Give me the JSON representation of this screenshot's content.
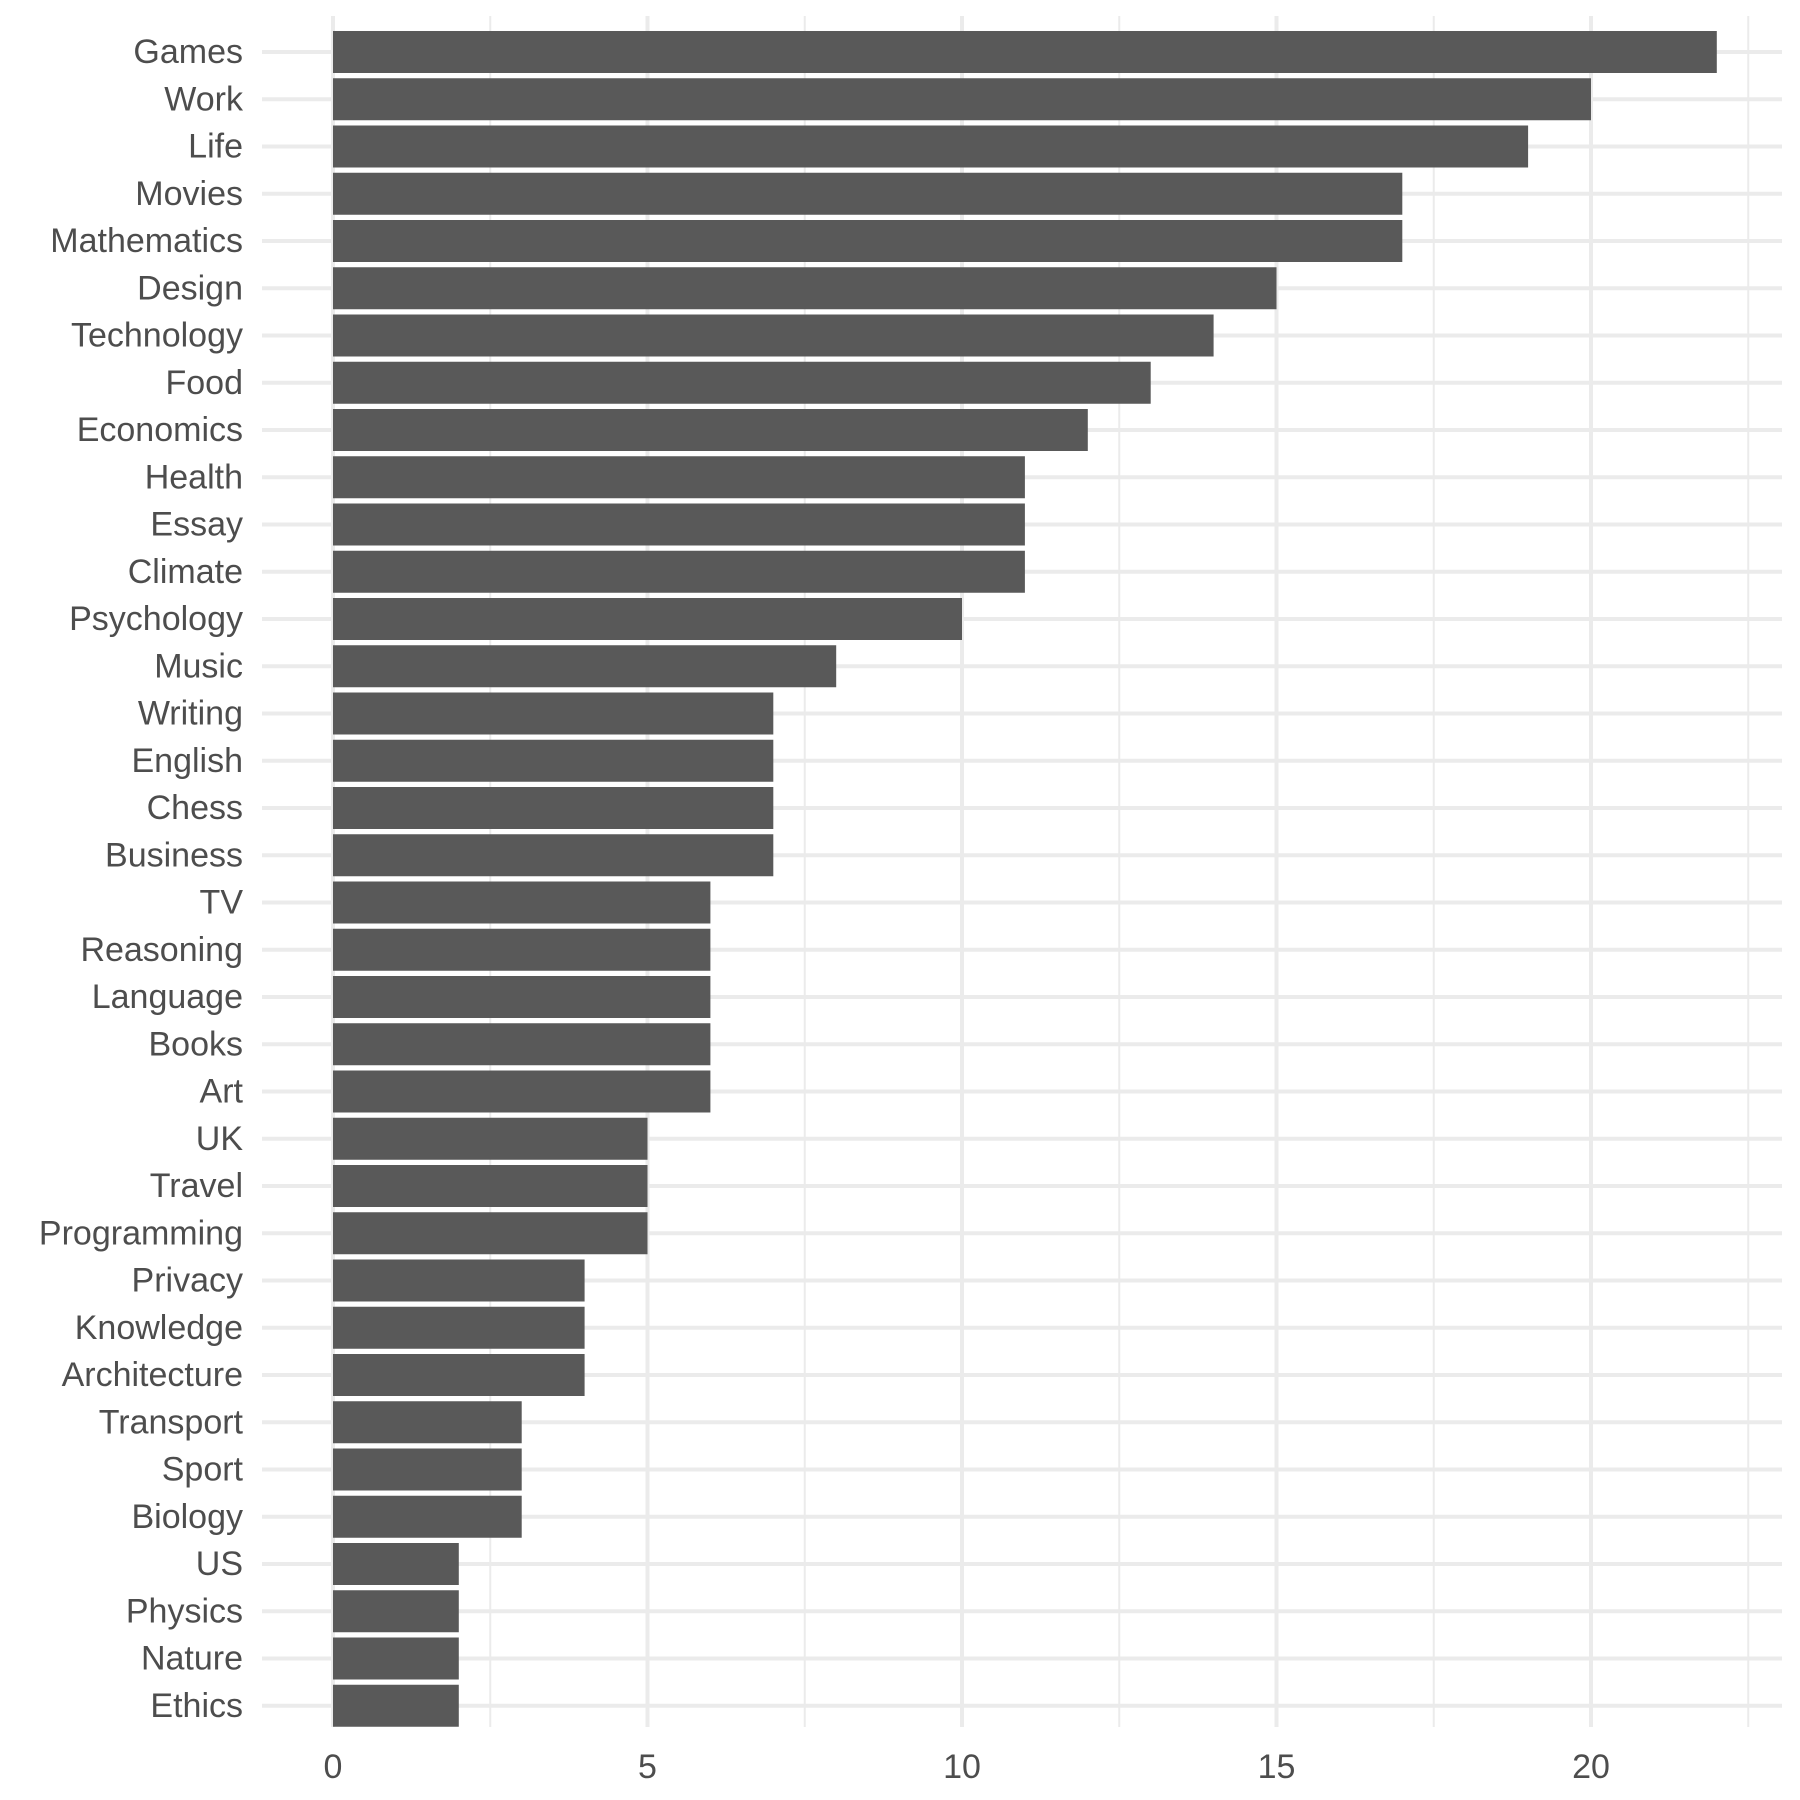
{
  "colors": {
    "background": "#ffffff",
    "bar": "#595959",
    "grid": "#ebebeb",
    "text": "#4d4d4d"
  },
  "chart_data": {
    "type": "bar",
    "orientation": "horizontal",
    "title": "",
    "xlabel": "",
    "ylabel": "",
    "categories": [
      "Games",
      "Work",
      "Life",
      "Movies",
      "Mathematics",
      "Design",
      "Technology",
      "Food",
      "Economics",
      "Health",
      "Essay",
      "Climate",
      "Psychology",
      "Music",
      "Writing",
      "English",
      "Chess",
      "Business",
      "TV",
      "Reasoning",
      "Language",
      "Books",
      "Art",
      "UK",
      "Travel",
      "Programming",
      "Privacy",
      "Knowledge",
      "Architecture",
      "Transport",
      "Sport",
      "Biology",
      "US",
      "Physics",
      "Nature",
      "Ethics"
    ],
    "values": [
      22,
      20,
      19,
      17,
      17,
      15,
      14,
      13,
      12,
      11,
      11,
      11,
      10,
      8,
      7,
      7,
      7,
      7,
      6,
      6,
      6,
      6,
      6,
      5,
      5,
      5,
      4,
      4,
      4,
      3,
      3,
      3,
      2,
      2,
      2,
      2
    ],
    "xlim": [
      0,
      23.3
    ],
    "xticks": [
      0,
      5,
      10,
      15,
      20
    ],
    "xtick_labels": [
      "0",
      "5",
      "10",
      "15",
      "20"
    ],
    "grid": true,
    "legend": "none"
  }
}
